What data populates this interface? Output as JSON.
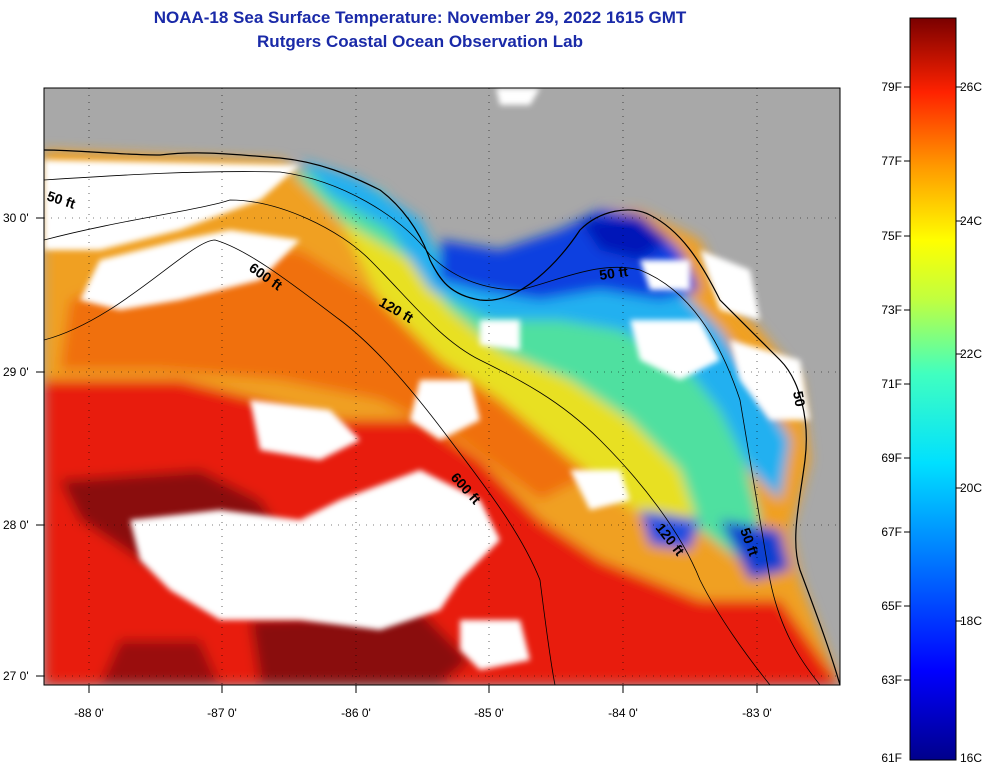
{
  "header": {
    "title": "NOAA-18 Sea Surface Temperature:  November 29, 2022 1615 GMT",
    "subtitle": "Rutgers Coastal Ocean Observation Lab"
  },
  "map": {
    "lon_ticks": [
      "-88 0'",
      "-87 0'",
      "-86 0'",
      "-85 0'",
      "-84 0'",
      "-83 0'"
    ],
    "lat_ticks": [
      "30 0'",
      "29 0'",
      "28 0'",
      "27 0'"
    ],
    "contour_labels": [
      "50 ft",
      "600 ft",
      "120 ft",
      "50 ft",
      "600 ft",
      "120 ft",
      "50 ft",
      "50"
    ]
  },
  "colorbar": {
    "fahrenheit": [
      "79F",
      "77F",
      "75F",
      "73F",
      "71F",
      "69F",
      "67F",
      "65F",
      "63F",
      "61F"
    ],
    "celsius": [
      "26C",
      "24C",
      "22C",
      "20C",
      "18C",
      "16C"
    ]
  },
  "colors": {
    "land": "#a8a8a8",
    "cloud": "#ffffff",
    "title": "#1a2aa8"
  }
}
